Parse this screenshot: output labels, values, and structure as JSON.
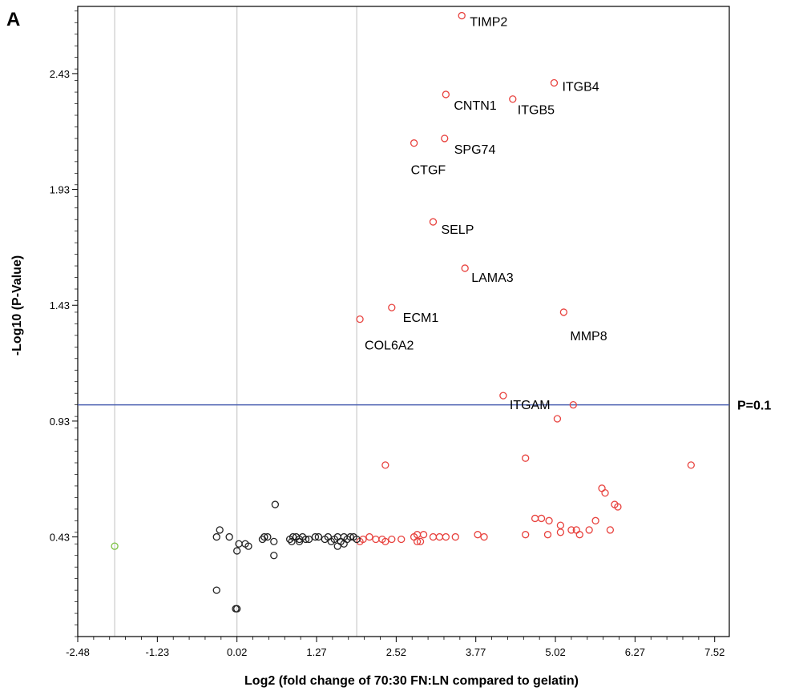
{
  "panel_label": "A",
  "colors": {
    "significant": "#e8423e",
    "not_significant": "#222222",
    "outlier_low": "#7cc242",
    "threshold_line": "#4a5fb0",
    "grid": "#c9c9c9",
    "frame": "#000000"
  },
  "chart_data": {
    "type": "scatter",
    "title": "",
    "xlabel": "Log2 (fold change of 70:30 FN:LN compared to gelatin)",
    "ylabel": "-Log10 (P-Value)",
    "xlim": [
      -2.48,
      7.75
    ],
    "ylim": [
      0.0,
      2.72
    ],
    "x_ticks": [
      -2.48,
      -1.23,
      0.02,
      1.27,
      2.52,
      3.77,
      5.02,
      6.27,
      7.52
    ],
    "x_tick_labels": [
      "-2.48",
      "-1.23",
      "0.02",
      "1.27",
      "2.52",
      "3.77",
      "5.02",
      "6.27",
      "7.52"
    ],
    "y_ticks": [
      0.43,
      0.93,
      1.43,
      1.93,
      2.43
    ],
    "y_tick_labels": [
      "0.43",
      "0.93",
      "1.43",
      "1.93",
      "2.43"
    ],
    "y_tick_label_size": [
      "small",
      "normal",
      "normal",
      "normal",
      "normal"
    ],
    "vertical_gridlines": [
      -1.9,
      0.02,
      1.9
    ],
    "grid": true,
    "threshold": {
      "y": 1.0,
      "label": "P=0.1"
    },
    "labeled_points": [
      {
        "label": "TIMP2",
        "x": 3.55,
        "y": 2.68
      },
      {
        "label": "ITGB4",
        "x": 5.0,
        "y": 2.39
      },
      {
        "label": "CNTN1",
        "x": 3.3,
        "y": 2.34
      },
      {
        "label": "ITGB5",
        "x": 4.35,
        "y": 2.32
      },
      {
        "label": "SPG74",
        "x": 3.28,
        "y": 2.15
      },
      {
        "label": "CTGF",
        "x": 2.8,
        "y": 2.13
      },
      {
        "label": "SELP",
        "x": 3.1,
        "y": 1.79
      },
      {
        "label": "LAMA3",
        "x": 3.6,
        "y": 1.59
      },
      {
        "label": "ECM1",
        "x": 2.45,
        "y": 1.42
      },
      {
        "label": "COL6A2",
        "x": 1.95,
        "y": 1.37
      },
      {
        "label": "MMP8",
        "x": 5.15,
        "y": 1.4
      },
      {
        "label": "ITGAM",
        "x": 4.2,
        "y": 1.04
      }
    ],
    "series": [
      {
        "name": "",
        "color": "#e8423e",
        "points": [
          [
            5.3,
            1.0
          ],
          [
            5.05,
            0.94
          ],
          [
            2.35,
            0.74
          ],
          [
            4.55,
            0.77
          ],
          [
            7.15,
            0.74
          ],
          [
            5.75,
            0.64
          ],
          [
            5.8,
            0.62
          ],
          [
            5.95,
            0.57
          ],
          [
            6.0,
            0.56
          ],
          [
            4.7,
            0.51
          ],
          [
            4.8,
            0.51
          ],
          [
            4.92,
            0.5
          ],
          [
            5.65,
            0.5
          ],
          [
            5.1,
            0.48
          ],
          [
            5.27,
            0.46
          ],
          [
            5.35,
            0.46
          ],
          [
            5.55,
            0.46
          ],
          [
            5.88,
            0.46
          ],
          [
            4.55,
            0.44
          ],
          [
            4.9,
            0.44
          ],
          [
            5.1,
            0.45
          ],
          [
            5.4,
            0.44
          ],
          [
            3.8,
            0.44
          ],
          [
            3.9,
            0.43
          ],
          [
            3.3,
            0.43
          ],
          [
            3.45,
            0.43
          ],
          [
            3.1,
            0.43
          ],
          [
            3.2,
            0.43
          ],
          [
            2.95,
            0.44
          ],
          [
            2.85,
            0.44
          ],
          [
            2.8,
            0.43
          ],
          [
            2.6,
            0.42
          ],
          [
            2.45,
            0.42
          ],
          [
            2.3,
            0.42
          ],
          [
            2.2,
            0.42
          ],
          [
            2.1,
            0.43
          ],
          [
            2.0,
            0.42
          ],
          [
            1.95,
            0.41
          ],
          [
            2.9,
            0.41
          ],
          [
            2.35,
            0.41
          ],
          [
            2.85,
            0.41
          ]
        ]
      },
      {
        "name": "",
        "color": "#222222",
        "points": [
          [
            -0.25,
            0.46
          ],
          [
            -0.3,
            0.43
          ],
          [
            -0.1,
            0.43
          ],
          [
            0.05,
            0.4
          ],
          [
            0.15,
            0.4
          ],
          [
            0.2,
            0.39
          ],
          [
            0.02,
            0.37
          ],
          [
            0.62,
            0.57
          ],
          [
            0.5,
            0.43
          ],
          [
            0.45,
            0.43
          ],
          [
            0.42,
            0.42
          ],
          [
            0.6,
            0.41
          ],
          [
            0.6,
            0.35
          ],
          [
            -0.3,
            0.2
          ],
          [
            0.0,
            0.12
          ],
          [
            0.02,
            0.12
          ],
          [
            0.85,
            0.42
          ],
          [
            0.9,
            0.43
          ],
          [
            0.95,
            0.43
          ],
          [
            1.0,
            0.42
          ],
          [
            1.05,
            0.43
          ],
          [
            1.1,
            0.42
          ],
          [
            1.15,
            0.42
          ],
          [
            1.25,
            0.43
          ],
          [
            1.3,
            0.43
          ],
          [
            1.4,
            0.42
          ],
          [
            1.45,
            0.43
          ],
          [
            1.55,
            0.42
          ],
          [
            1.6,
            0.43
          ],
          [
            1.65,
            0.41
          ],
          [
            1.7,
            0.43
          ],
          [
            1.75,
            0.42
          ],
          [
            1.8,
            0.43
          ],
          [
            1.85,
            0.43
          ],
          [
            1.9,
            0.42
          ],
          [
            1.6,
            0.39
          ],
          [
            1.7,
            0.4
          ],
          [
            0.88,
            0.41
          ],
          [
            1.0,
            0.41
          ],
          [
            1.5,
            0.41
          ]
        ]
      },
      {
        "name": "",
        "color": "#7cc242",
        "points": [
          [
            -1.9,
            0.39
          ]
        ]
      }
    ]
  }
}
